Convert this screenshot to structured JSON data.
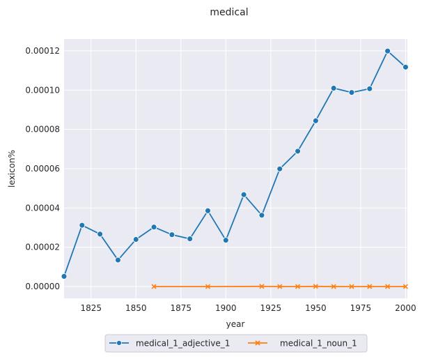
{
  "chart_data": {
    "type": "line",
    "title": "medical",
    "xlabel": "year",
    "ylabel": "lexicon%",
    "xlim": [
      1810,
      2001
    ],
    "ylim": [
      -6e-06,
      0.000126
    ],
    "x_ticks": [
      1825,
      1850,
      1875,
      1900,
      1925,
      1950,
      1975,
      2000
    ],
    "y_ticks": [
      0.0,
      2e-05,
      4e-05,
      6e-05,
      8e-05,
      0.0001,
      0.00012
    ],
    "y_tick_labels": [
      "0.00000",
      "0.00002",
      "0.00004",
      "0.00006",
      "0.00008",
      "0.00010",
      "0.00012"
    ],
    "grid": true,
    "legend_position": "bottom-center-outside",
    "series": [
      {
        "name": "medical_1_adjective_1",
        "color": "#1f77b4",
        "marker": "circle",
        "x": [
          1810,
          1820,
          1830,
          1840,
          1850,
          1860,
          1870,
          1880,
          1890,
          1900,
          1910,
          1920,
          1930,
          1940,
          1950,
          1960,
          1970,
          1980,
          1990,
          2000
        ],
        "y": [
          5.2e-06,
          3.12e-05,
          2.67e-05,
          1.35e-05,
          2.4e-05,
          3.03e-05,
          2.64e-05,
          2.43e-05,
          3.86e-05,
          2.36e-05,
          4.68e-05,
          3.63e-05,
          5.99e-05,
          6.89e-05,
          8.44e-05,
          0.000101,
          9.88e-05,
          0.0001007,
          0.0001199,
          0.0001117
        ]
      },
      {
        "name": "medical_1_noun_1",
        "color": "#ff7f0e",
        "marker": "x",
        "x": [
          1860,
          1890,
          1920,
          1930,
          1940,
          1950,
          1960,
          1970,
          1980,
          1990,
          2000
        ],
        "y": [
          0.0,
          0.0,
          1e-07,
          0.0,
          0.0,
          1e-07,
          0.0,
          0.0,
          0.0,
          0.0,
          0.0
        ]
      }
    ]
  }
}
